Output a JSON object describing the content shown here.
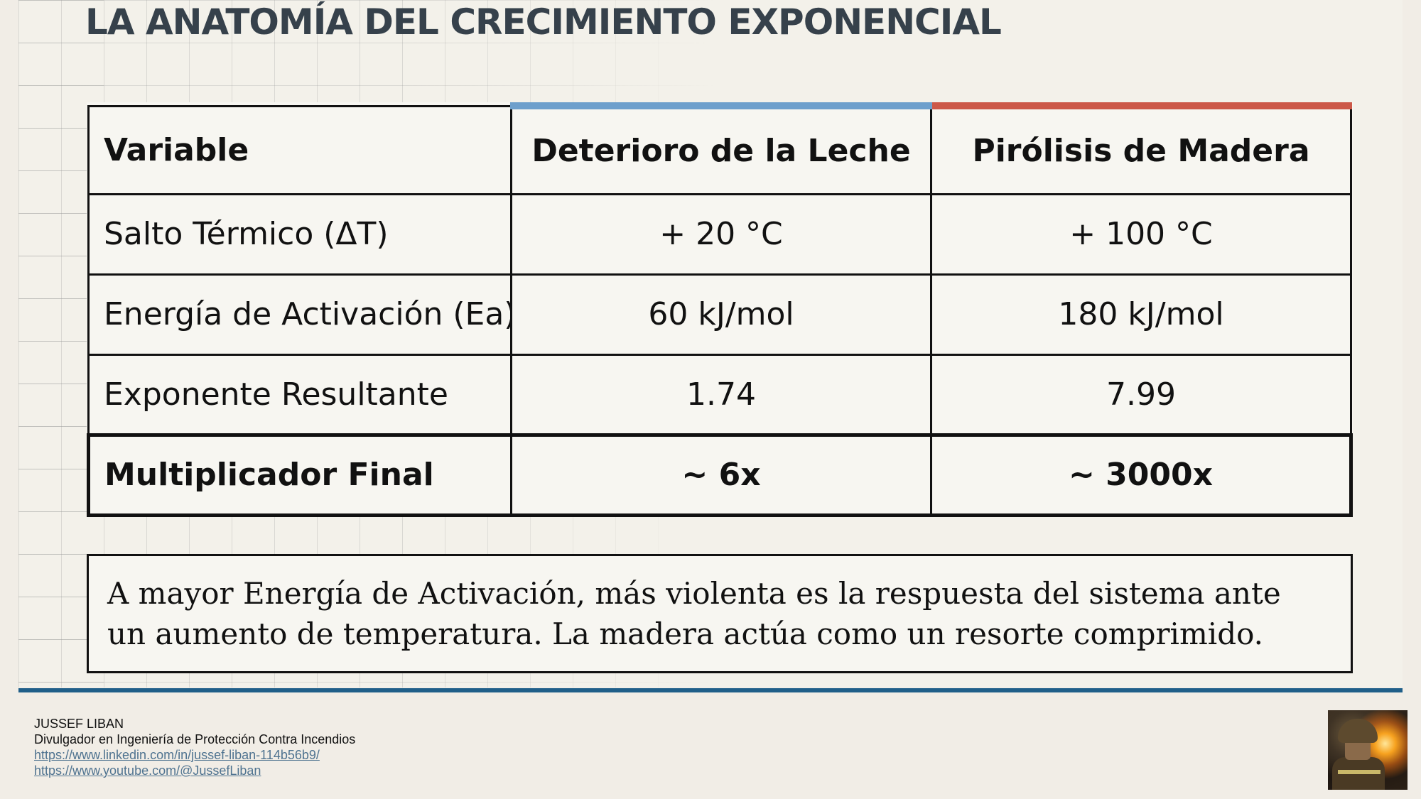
{
  "title": "LA ANATOMÍA DEL CRECIMIENTO EXPONENCIAL",
  "table": {
    "headers": [
      "Variable",
      "Deterioro de la Leche",
      "Pirólisis de Madera"
    ],
    "rows": [
      [
        "Salto Térmico (ΔT)",
        "+ 20 °C",
        "+ 100 °C"
      ],
      [
        "Energía de Activación (Ea)",
        "60 kJ/mol",
        "180 kJ/mol"
      ],
      [
        "Exponente Resultante",
        "1.74",
        "7.99"
      ],
      [
        "Multiplicador Final",
        "~ 6x",
        "~ 3000x"
      ]
    ]
  },
  "note": {
    "line1": "A mayor Energía de Activación, más violenta es la respuesta del sistema ante",
    "line2": "un aumento de temperatura. La madera actúa como un resorte comprimido."
  },
  "footer": {
    "name": "JUSSEF LIBAN",
    "role": "Divulgador en Ingeniería de Protección Contra Incendios",
    "linkedin": "https://www.linkedin.com/in/jussef-liban-114b56b9/",
    "youtube": "https://www.youtube.com/@JussefLiban"
  },
  "colors": {
    "leche_accent": "#6d9fcc",
    "madera_accent": "#cc5848",
    "divider": "#205f89",
    "title": "#36414b"
  }
}
